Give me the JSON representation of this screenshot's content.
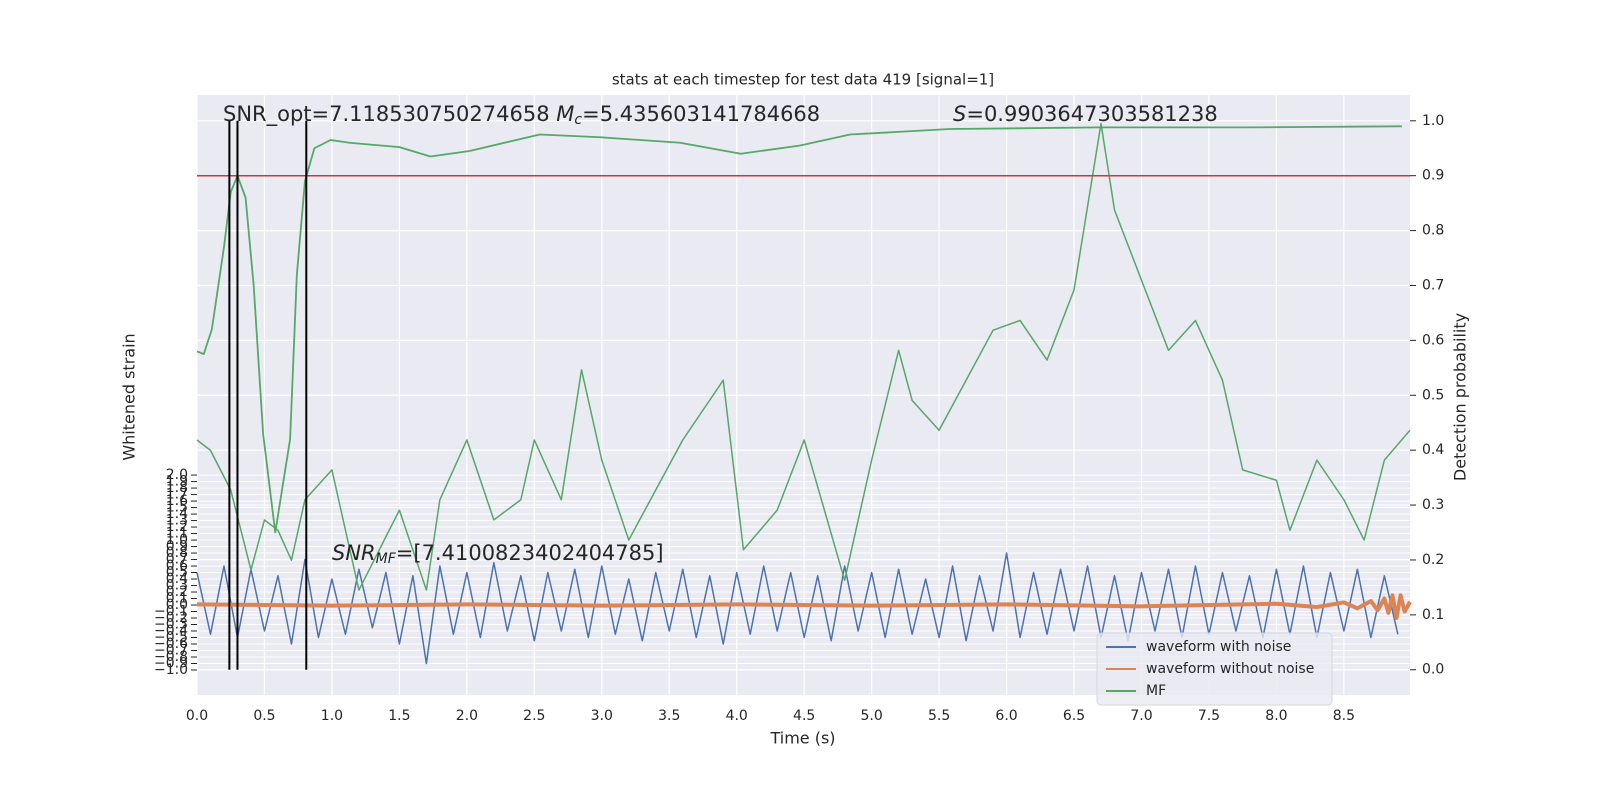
{
  "chart_data": {
    "type": "line",
    "title": "stats at each timestep for test data 419 [signal=1]",
    "x_label": "Time (s)",
    "y_label": "Whitened strain",
    "y2_label": "Detection probability",
    "annotations": {
      "snr_opt": "SNR_opt=7.118530750274658",
      "chirp_mass": [
        "M",
        "c",
        "=5.435603141784668"
      ],
      "score": [
        "S",
        "=0.9903647303581238"
      ],
      "snr_mf": [
        "SNR",
        "MF",
        "=[7.4100823402404785]"
      ]
    },
    "xlim": [
      0,
      8.99
    ],
    "ylim": [
      -1.385,
      7.85
    ],
    "y2lim": [
      -0.046,
      1.047
    ],
    "grid": true,
    "legend": "lower right",
    "xticks": [
      {
        "value": 0,
        "label": "0.0"
      },
      {
        "value": 0.5,
        "label": "0.5"
      },
      {
        "value": 1,
        "label": "1.0"
      },
      {
        "value": 1.5,
        "label": "1.5"
      },
      {
        "value": 2,
        "label": "2.0"
      },
      {
        "value": 2.5,
        "label": "2.5"
      },
      {
        "value": 3,
        "label": "3.0"
      },
      {
        "value": 3.5,
        "label": "3.5"
      },
      {
        "value": 4,
        "label": "4.0"
      },
      {
        "value": 4.5,
        "label": "4.5"
      },
      {
        "value": 5,
        "label": "5.0"
      },
      {
        "value": 5.5,
        "label": "5.5"
      },
      {
        "value": 6,
        "label": "6.0"
      },
      {
        "value": 6.5,
        "label": "6.5"
      },
      {
        "value": 7,
        "label": "7.0"
      },
      {
        "value": 7.5,
        "label": "7.5"
      },
      {
        "value": 8,
        "label": "8.0"
      },
      {
        "value": 8.5,
        "label": "8.5"
      }
    ],
    "yticks": [
      {
        "value": -1.0,
        "label": "−1.0"
      },
      {
        "value": -0.9,
        "label": "−0.9"
      },
      {
        "value": -0.8,
        "label": "−0.8"
      },
      {
        "value": -0.7,
        "label": "−0.7"
      },
      {
        "value": -0.6,
        "label": "−0.6"
      },
      {
        "value": -0.5,
        "label": "−0.5"
      },
      {
        "value": -0.4,
        "label": "−0.4"
      },
      {
        "value": -0.3,
        "label": "−0.3"
      },
      {
        "value": -0.2,
        "label": "−0.2"
      },
      {
        "value": -0.1,
        "label": "−0.1"
      },
      {
        "value": 0.0,
        "label": "0.0"
      },
      {
        "value": 0.1,
        "label": "0.1"
      },
      {
        "value": 0.2,
        "label": "0.2"
      },
      {
        "value": 0.3,
        "label": "0.3"
      },
      {
        "value": 0.4,
        "label": "0.4"
      },
      {
        "value": 0.5,
        "label": "0.5"
      },
      {
        "value": 0.6,
        "label": "0.6"
      },
      {
        "value": 0.7,
        "label": "0.7"
      },
      {
        "value": 0.8,
        "label": "0.8"
      },
      {
        "value": 0.9,
        "label": "0.9"
      },
      {
        "value": 1.0,
        "label": "1.0"
      },
      {
        "value": 1.1,
        "label": "1.1"
      },
      {
        "value": 1.2,
        "label": "1.2"
      },
      {
        "value": 1.3,
        "label": "1.3"
      },
      {
        "value": 1.4,
        "label": "1.4"
      },
      {
        "value": 1.5,
        "label": "1.5"
      },
      {
        "value": 1.6,
        "label": "1.6"
      },
      {
        "value": 1.7,
        "label": "1.7"
      },
      {
        "value": 1.8,
        "label": "1.8"
      },
      {
        "value": 1.9,
        "label": "1.9"
      },
      {
        "value": 2.0,
        "label": "2.0"
      }
    ],
    "y2ticks": [
      {
        "value": 0.0,
        "label": "0.0"
      },
      {
        "value": 0.1,
        "label": "0.1"
      },
      {
        "value": 0.2,
        "label": "0.2"
      },
      {
        "value": 0.3,
        "label": "0.3"
      },
      {
        "value": 0.4,
        "label": "0.4"
      },
      {
        "value": 0.5,
        "label": "0.5"
      },
      {
        "value": 0.6,
        "label": "0.6"
      },
      {
        "value": 0.7,
        "label": "0.7"
      },
      {
        "value": 0.8,
        "label": "0.8"
      },
      {
        "value": 0.9,
        "label": "0.9"
      },
      {
        "value": 1.0,
        "label": "1.0"
      }
    ],
    "threshold": {
      "value": 0.9,
      "axis": "y2",
      "color": "#c03d3e"
    },
    "vlines": {
      "x": [
        0.24,
        0.3,
        0.81
      ],
      "range": [
        0,
        1
      ],
      "axis": "y2",
      "color": "#000000"
    },
    "series": [
      {
        "name": "waveform with noise",
        "color": "#4c72b0",
        "x": [
          0,
          0.1,
          0.2,
          0.3,
          0.4,
          0.5,
          0.6,
          0.7,
          0.8,
          0.9,
          1,
          1.1,
          1.2,
          1.3,
          1.4,
          1.5,
          1.6,
          1.7,
          1.8,
          1.9,
          2,
          2.1,
          2.2,
          2.3,
          2.4,
          2.5,
          2.6,
          2.7,
          2.8,
          2.9,
          3,
          3.1,
          3.2,
          3.3,
          3.4,
          3.5,
          3.6,
          3.7,
          3.8,
          3.9,
          4,
          4.1,
          4.2,
          4.3,
          4.4,
          4.5,
          4.6,
          4.7,
          4.8,
          4.9,
          5,
          5.1,
          5.2,
          5.3,
          5.4,
          5.5,
          5.6,
          5.7,
          5.8,
          5.9,
          6,
          6.1,
          6.2,
          6.3,
          6.4,
          6.5,
          6.6,
          6.7,
          6.8,
          6.9,
          7,
          7.1,
          7.2,
          7.3,
          7.4,
          7.5,
          7.6,
          7.7,
          7.8,
          7.9,
          8,
          8.1,
          8.2,
          8.3,
          8.4,
          8.5,
          8.6,
          8.7,
          8.8,
          8.9
        ],
        "values": [
          0.5,
          -0.45,
          0.6,
          -0.5,
          0.55,
          -0.4,
          0.45,
          -0.6,
          0.7,
          -0.5,
          0.4,
          -0.45,
          0.55,
          -0.35,
          0.5,
          -0.6,
          0.45,
          -0.9,
          0.6,
          -0.45,
          0.5,
          -0.5,
          0.65,
          -0.4,
          0.45,
          -0.55,
          0.5,
          -0.4,
          0.55,
          -0.5,
          0.6,
          -0.45,
          0.4,
          -0.55,
          0.5,
          -0.4,
          0.55,
          -0.5,
          0.45,
          -0.6,
          0.5,
          -0.45,
          0.6,
          -0.4,
          0.5,
          -0.5,
          0.45,
          -0.55,
          0.6,
          -0.4,
          0.5,
          -0.5,
          0.55,
          -0.45,
          0.4,
          -0.5,
          0.6,
          -0.55,
          0.45,
          -0.4,
          0.8,
          -0.5,
          0.5,
          -0.45,
          0.55,
          -0.4,
          0.6,
          -0.5,
          0.45,
          -0.55,
          0.5,
          -0.4,
          0.55,
          -0.5,
          0.6,
          -0.45,
          0.5,
          -0.4,
          0.45,
          -0.5,
          0.55,
          -0.45,
          0.6,
          -0.5,
          0.5,
          -0.4,
          0.55,
          -0.5,
          0.45,
          -0.45
        ]
      },
      {
        "name": "waveform without noise",
        "color": "#dd8452",
        "x": [
          0,
          1,
          2,
          3,
          4,
          5,
          6,
          7,
          8,
          8.3,
          8.5,
          8.6,
          8.7,
          8.75,
          8.8,
          8.83,
          8.86,
          8.89,
          8.92,
          8.95,
          8.99
        ],
        "values": [
          0.01,
          -0.01,
          0.01,
          -0.01,
          0.01,
          -0.01,
          0.01,
          -0.02,
          0.02,
          -0.03,
          0.04,
          -0.05,
          0.06,
          -0.08,
          0.1,
          -0.12,
          0.15,
          -0.2,
          0.15,
          -0.1,
          0.05
        ]
      },
      {
        "name": "MF",
        "color": "#55a868",
        "x": [
          0,
          0.1,
          0.25,
          0.4,
          0.5,
          0.6,
          0.7,
          0.8,
          1,
          1.2,
          1.5,
          1.7,
          1.8,
          2,
          2.2,
          2.4,
          2.5,
          2.7,
          2.85,
          3,
          3.2,
          3.4,
          3.6,
          3.9,
          4.05,
          4.3,
          4.5,
          4.8,
          5,
          5.2,
          5.3,
          5.5,
          5.7,
          5.9,
          6.1,
          6.3,
          6.5,
          6.7,
          6.8,
          7,
          7.2,
          7.4,
          7.6,
          7.75,
          8,
          8.1,
          8.3,
          8.5,
          8.65,
          8.8,
          8.99
        ],
        "values": [
          2.54,
          2.38,
          1.77,
          0.54,
          1.31,
          1.15,
          0.69,
          1.62,
          2.08,
          0.23,
          1.46,
          0.23,
          1.62,
          2.54,
          1.31,
          1.62,
          2.54,
          1.62,
          3.62,
          2.23,
          1.0,
          1.77,
          2.54,
          3.46,
          0.85,
          1.46,
          2.54,
          0.38,
          2.23,
          3.92,
          3.15,
          2.69,
          3.46,
          4.23,
          4.38,
          3.77,
          4.85,
          7.41,
          6.08,
          5.0,
          3.92,
          4.38,
          3.46,
          2.08,
          1.92,
          1.15,
          2.23,
          1.62,
          1.0,
          2.23,
          2.69
        ]
      },
      {
        "axis": "y2",
        "color": "#55a868",
        "x": [
          0,
          0.05,
          0.11,
          0.2,
          0.25,
          0.3,
          0.36,
          0.42,
          0.49,
          0.58,
          0.69,
          0.74,
          0.8,
          0.87,
          0.99,
          1.13,
          1.5,
          1.73,
          2.02,
          2.54,
          2.99,
          3.58,
          4.03,
          4.47,
          4.84,
          5.58,
          6.69,
          7.81,
          8.93
        ],
        "values": [
          0.58,
          0.575,
          0.62,
          0.77,
          0.87,
          0.9,
          0.86,
          0.7,
          0.43,
          0.25,
          0.42,
          0.72,
          0.89,
          0.95,
          0.965,
          0.96,
          0.952,
          0.935,
          0.945,
          0.975,
          0.97,
          0.96,
          0.94,
          0.955,
          0.975,
          0.985,
          0.988,
          0.988,
          0.99
        ]
      }
    ]
  }
}
